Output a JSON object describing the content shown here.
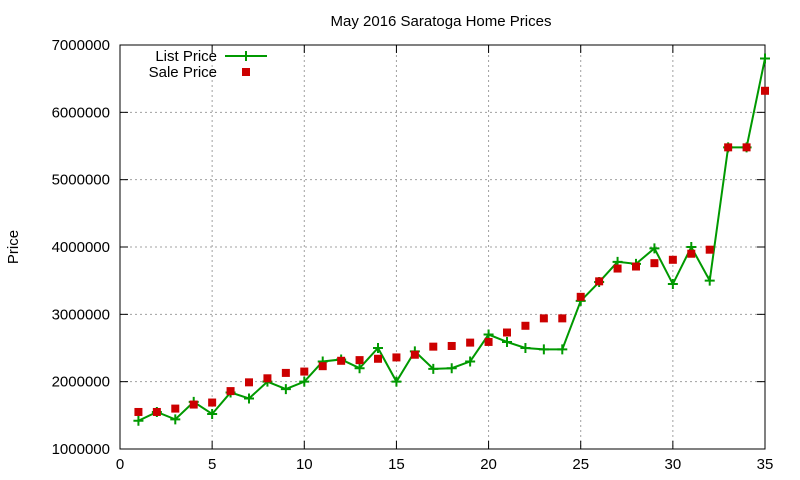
{
  "chart_data": {
    "type": "line",
    "title": "May 2016 Saratoga Home Prices",
    "xlabel": "",
    "ylabel": "Price",
    "xlim": [
      0,
      35
    ],
    "ylim": [
      1000000,
      7000000
    ],
    "x_ticks": [
      0,
      5,
      10,
      15,
      20,
      25,
      30,
      35
    ],
    "y_ticks": [
      1000000,
      2000000,
      3000000,
      4000000,
      5000000,
      6000000,
      7000000
    ],
    "grid": true,
    "legend_position": "top-left",
    "x": [
      1,
      2,
      3,
      4,
      5,
      6,
      7,
      8,
      9,
      10,
      11,
      12,
      13,
      14,
      15,
      16,
      17,
      18,
      19,
      20,
      21,
      22,
      23,
      24,
      25,
      26,
      27,
      28,
      29,
      30,
      31,
      32,
      33,
      34,
      35
    ],
    "series": [
      {
        "name": "List Price",
        "style": "line-with-plus-markers",
        "color": "#009900",
        "values": [
          1420000,
          1550000,
          1440000,
          1700000,
          1520000,
          1840000,
          1750000,
          2000000,
          1890000,
          2000000,
          2300000,
          2330000,
          2200000,
          2500000,
          2000000,
          2450000,
          2190000,
          2200000,
          2300000,
          2700000,
          2590000,
          2500000,
          2480000,
          2480000,
          3200000,
          3480000,
          3780000,
          3750000,
          3980000,
          3450000,
          4000000,
          3500000,
          5480000,
          5480000,
          6800000
        ]
      },
      {
        "name": "Sale Price",
        "style": "square-markers",
        "color": "#cc0000",
        "values": [
          1550000,
          1550000,
          1600000,
          1660000,
          1690000,
          1860000,
          1990000,
          2050000,
          2130000,
          2150000,
          2230000,
          2310000,
          2320000,
          2340000,
          2360000,
          2400000,
          2520000,
          2530000,
          2580000,
          2590000,
          2730000,
          2830000,
          2940000,
          2940000,
          3260000,
          3490000,
          3680000,
          3710000,
          3760000,
          3810000,
          3900000,
          3960000,
          5480000,
          5480000,
          6320000
        ]
      }
    ]
  }
}
